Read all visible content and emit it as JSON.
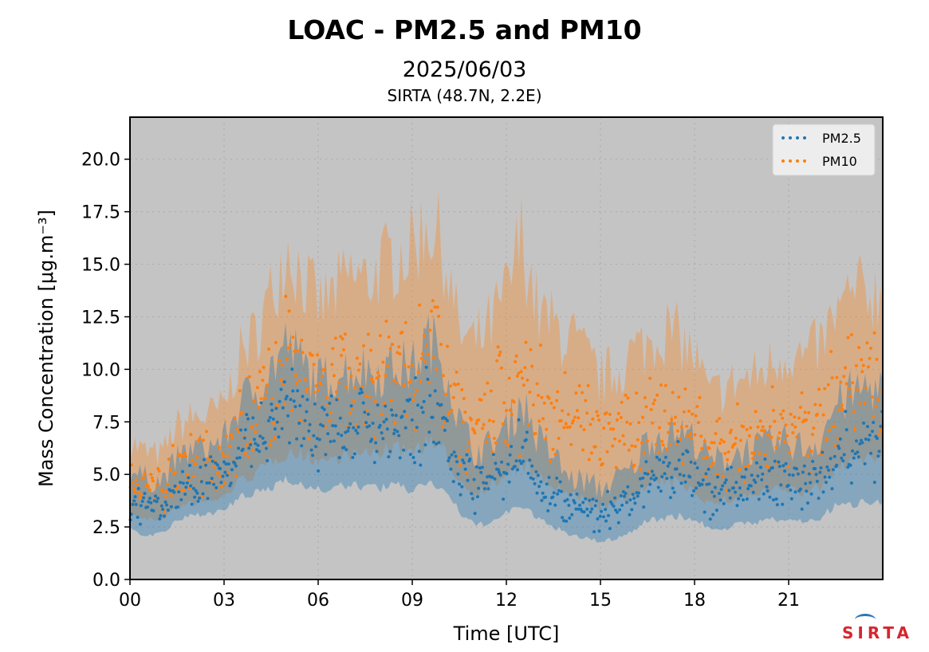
{
  "header": {
    "title": "LOAC - PM2.5 and PM10",
    "date": "2025/06/03",
    "site": "SIRTA (48.7N, 2.2E)"
  },
  "logo": {
    "text": "SIRTA"
  },
  "chart_data": {
    "type": "scatter",
    "xlabel": "Time [UTC]",
    "ylabel": "Mass Concentration [μg.m⁻³]",
    "xlim": [
      0,
      24
    ],
    "ylim": [
      0,
      22
    ],
    "grid": true,
    "background": "#c4c4c4",
    "legend_position": "top-right",
    "x_ticks": [
      {
        "value": 0,
        "label": "00"
      },
      {
        "value": 3,
        "label": "03"
      },
      {
        "value": 6,
        "label": "06"
      },
      {
        "value": 9,
        "label": "09"
      },
      {
        "value": 12,
        "label": "12"
      },
      {
        "value": 15,
        "label": "15"
      },
      {
        "value": 18,
        "label": "18"
      },
      {
        "value": 21,
        "label": "21"
      }
    ],
    "y_ticks": [
      {
        "value": 0,
        "label": "0.0"
      },
      {
        "value": 2.5,
        "label": "2.5"
      },
      {
        "value": 5,
        "label": "5.0"
      },
      {
        "value": 7.5,
        "label": "7.5"
      },
      {
        "value": 10,
        "label": "10.0"
      },
      {
        "value": 12.5,
        "label": "12.5"
      },
      {
        "value": 15,
        "label": "15.0"
      },
      {
        "value": 17.5,
        "label": "17.5"
      },
      {
        "value": 20,
        "label": "20.0"
      }
    ],
    "series": [
      {
        "name": "PM2.5",
        "color": "#1f77b4",
        "x": [
          0,
          0.5,
          1,
          1.5,
          2,
          2.5,
          3,
          3.5,
          4,
          4.5,
          5,
          5.5,
          6,
          6.5,
          7,
          7.5,
          8,
          8.5,
          9,
          9.5,
          10,
          10.5,
          11,
          11.5,
          12,
          12.5,
          13,
          13.5,
          14,
          14.5,
          15,
          15.5,
          16,
          16.5,
          17,
          17.5,
          18,
          18.5,
          19,
          19.5,
          20,
          20.5,
          21,
          21.5,
          22,
          22.5,
          23,
          23.5,
          24
        ],
        "values": [
          3.8,
          3.4,
          3.4,
          4.2,
          4.6,
          4.7,
          4.9,
          6.2,
          6.6,
          7.3,
          8.2,
          7.4,
          6.9,
          7.1,
          7.3,
          7.3,
          7.2,
          7.4,
          7.2,
          8.3,
          7.6,
          5.4,
          4.3,
          4.6,
          5.2,
          6.2,
          4.8,
          4.3,
          3.4,
          3.3,
          3.0,
          3.4,
          3.7,
          4.9,
          5.0,
          5.1,
          4.8,
          4.0,
          4.1,
          4.4,
          4.5,
          4.7,
          4.7,
          4.5,
          4.8,
          6.0,
          6.3,
          6.6,
          6.5
        ],
        "band_low": [
          2.6,
          2.2,
          2.3,
          2.9,
          3.2,
          3.3,
          3.4,
          4.1,
          4.3,
          4.6,
          5.2,
          4.7,
          4.5,
          4.6,
          4.7,
          4.7,
          4.6,
          4.7,
          4.5,
          5.0,
          4.6,
          3.4,
          2.7,
          2.9,
          3.3,
          3.8,
          3.0,
          2.7,
          2.2,
          2.1,
          1.9,
          2.1,
          2.4,
          3.0,
          3.1,
          3.2,
          3.0,
          2.6,
          2.6,
          2.8,
          2.9,
          3.0,
          3.0,
          2.9,
          3.1,
          3.7,
          3.8,
          4.0,
          4.0
        ],
        "band_high": [
          5.0,
          4.6,
          4.5,
          5.5,
          6.0,
          6.1,
          6.4,
          8.1,
          8.7,
          9.6,
          10.8,
          9.8,
          9.0,
          9.4,
          9.6,
          9.6,
          9.5,
          9.8,
          9.6,
          11.0,
          10.1,
          7.2,
          5.8,
          6.1,
          6.9,
          8.2,
          6.4,
          5.7,
          4.6,
          4.5,
          4.1,
          4.6,
          5.0,
          6.5,
          6.6,
          6.8,
          6.4,
          5.4,
          5.5,
          5.9,
          6.0,
          6.2,
          6.3,
          6.0,
          6.4,
          8.0,
          8.4,
          8.8,
          8.7
        ]
      },
      {
        "name": "PM10",
        "color": "#ff7f0e",
        "x": [
          0,
          0.5,
          1,
          1.5,
          2,
          2.5,
          3,
          3.5,
          4,
          4.5,
          5,
          5.5,
          6,
          6.5,
          7,
          7.5,
          8,
          8.5,
          9,
          9.5,
          10,
          10.5,
          11,
          11.5,
          12,
          12.5,
          13,
          13.5,
          14,
          14.5,
          15,
          15.5,
          16,
          16.5,
          17,
          17.5,
          18,
          18.5,
          19,
          19.5,
          20,
          20.5,
          21,
          21.5,
          22,
          22.5,
          23,
          23.5,
          24
        ],
        "values": [
          4.7,
          4.3,
          4.2,
          5.2,
          5.4,
          5.5,
          5.8,
          7.1,
          7.6,
          8.6,
          10.3,
          9.2,
          8.6,
          8.8,
          9.3,
          9.3,
          9.7,
          9.9,
          10.1,
          11.0,
          10.0,
          7.8,
          7.2,
          7.8,
          8.7,
          9.8,
          8.3,
          8.0,
          7.7,
          7.1,
          6.4,
          6.6,
          7.3,
          7.6,
          8.1,
          7.8,
          7.1,
          5.8,
          6.2,
          6.4,
          6.6,
          7.0,
          7.3,
          7.0,
          7.5,
          8.6,
          9.3,
          9.5,
          9.3
        ],
        "band_low": [
          3.3,
          3.0,
          3.0,
          3.6,
          3.8,
          3.9,
          4.1,
          5.0,
          5.3,
          6.0,
          6.5,
          6.3,
          6.0,
          6.1,
          6.3,
          6.3,
          6.5,
          6.6,
          6.6,
          7.0,
          6.5,
          5.0,
          4.4,
          4.8,
          5.3,
          6.0,
          5.1,
          4.8,
          4.3,
          4.1,
          3.7,
          3.9,
          4.3,
          4.7,
          5.0,
          4.9,
          4.5,
          3.8,
          4.0,
          4.2,
          4.3,
          4.5,
          4.6,
          4.4,
          4.7,
          5.6,
          6.0,
          6.2,
          6.1
        ],
        "band_high": [
          6.3,
          5.8,
          5.7,
          7.0,
          7.4,
          7.5,
          7.9,
          10.2,
          11.2,
          13.0,
          15.2,
          13.8,
          12.5,
          13.0,
          13.8,
          13.6,
          14.2,
          14.8,
          15.1,
          16.4,
          14.9,
          11.2,
          10.6,
          11.5,
          12.9,
          15.6,
          12.1,
          11.5,
          11.0,
          10.1,
          9.1,
          9.4,
          10.3,
          10.7,
          11.4,
          11.0,
          10.1,
          8.3,
          8.8,
          9.1,
          9.3,
          9.9,
          10.4,
          10.0,
          10.6,
          12.0,
          12.9,
          13.2,
          12.9
        ]
      }
    ]
  }
}
